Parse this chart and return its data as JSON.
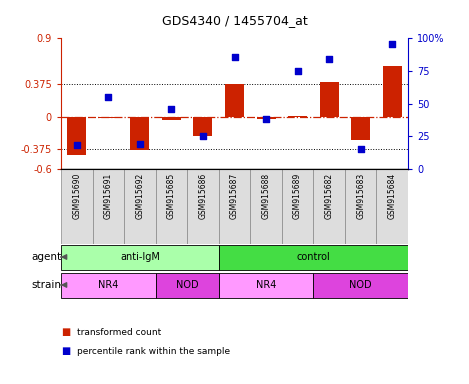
{
  "title": "GDS4340 / 1455704_at",
  "samples": [
    "GSM915690",
    "GSM915691",
    "GSM915692",
    "GSM915685",
    "GSM915686",
    "GSM915687",
    "GSM915688",
    "GSM915689",
    "GSM915682",
    "GSM915683",
    "GSM915684"
  ],
  "bar_values": [
    -0.44,
    -0.02,
    -0.38,
    -0.04,
    -0.22,
    0.375,
    -0.03,
    0.01,
    0.395,
    -0.27,
    0.58
  ],
  "dot_values": [
    18,
    55,
    19,
    46,
    25,
    86,
    38,
    75,
    84,
    15,
    96
  ],
  "ylim_left": [
    -0.6,
    0.9
  ],
  "ylim_right": [
    0,
    100
  ],
  "left_yticks": [
    -0.6,
    -0.375,
    0,
    0.375,
    0.9
  ],
  "left_yticklabels": [
    "-0.6",
    "-0.375",
    "0",
    "0.375",
    "0.9"
  ],
  "right_yticks": [
    0,
    25,
    50,
    75,
    100
  ],
  "right_yticklabels": [
    "0",
    "25",
    "50",
    "75",
    "100%"
  ],
  "hlines": [
    0.375,
    -0.375
  ],
  "bar_color": "#CC2200",
  "dot_color": "#0000CC",
  "dashed_color": "#CC2200",
  "agent_groups": [
    {
      "label": "anti-IgM",
      "start": 0,
      "end": 5,
      "color": "#AAFFAA"
    },
    {
      "label": "control",
      "start": 5,
      "end": 11,
      "color": "#44DD44"
    }
  ],
  "strain_groups": [
    {
      "label": "NR4",
      "start": 0,
      "end": 3,
      "color": "#FF99FF"
    },
    {
      "label": "NOD",
      "start": 3,
      "end": 5,
      "color": "#DD44DD"
    },
    {
      "label": "NR4",
      "start": 5,
      "end": 8,
      "color": "#FF99FF"
    },
    {
      "label": "NOD",
      "start": 8,
      "end": 11,
      "color": "#DD44DD"
    }
  ],
  "legend_items": [
    {
      "label": "transformed count",
      "color": "#CC2200"
    },
    {
      "label": "percentile rank within the sample",
      "color": "#0000CC"
    }
  ],
  "sample_box_color": "#DDDDDD",
  "sample_box_edge": "#888888"
}
